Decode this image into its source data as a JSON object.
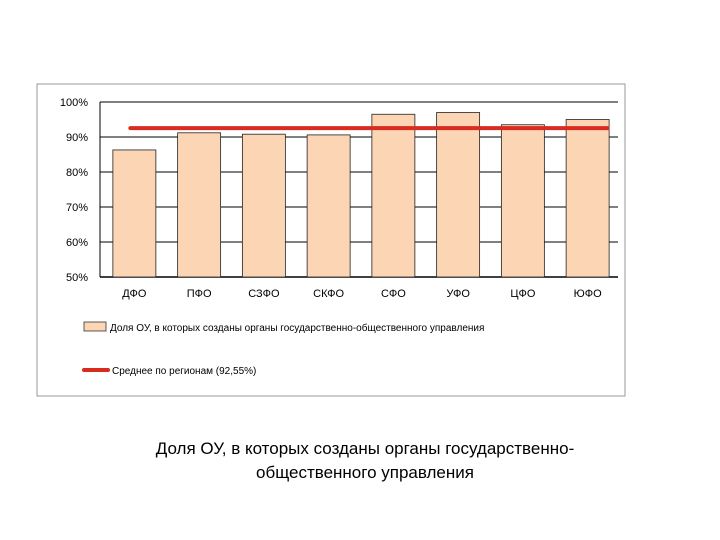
{
  "chart_data": {
    "type": "bar",
    "categories": [
      "ДФО",
      "ПФО",
      "СЗФО",
      "СКФО",
      "СФО",
      "УФО",
      "ЦФО",
      "ЮФО"
    ],
    "series": [
      {
        "name": "Доля ОУ, в которых созданы органы государственно-общественного управления",
        "values": [
          86.3,
          91.2,
          90.8,
          90.6,
          96.5,
          97.0,
          93.5,
          95.0
        ],
        "color": "#fcd5b4"
      }
    ],
    "average": {
      "name": "Среднее по регионам (92,55%)",
      "value": 92.55,
      "color": "#d92b1f"
    },
    "ylim": [
      50,
      100
    ],
    "yticks": [
      "50%",
      "60%",
      "70%",
      "80%",
      "90%",
      "100%"
    ],
    "ytick_values": [
      50,
      60,
      70,
      80,
      90,
      100
    ],
    "grid": true,
    "legend_position": "bottom"
  },
  "caption": {
    "line1": "Доля ОУ, в которых созданы органы государственно-",
    "line2": "общественного управления"
  }
}
